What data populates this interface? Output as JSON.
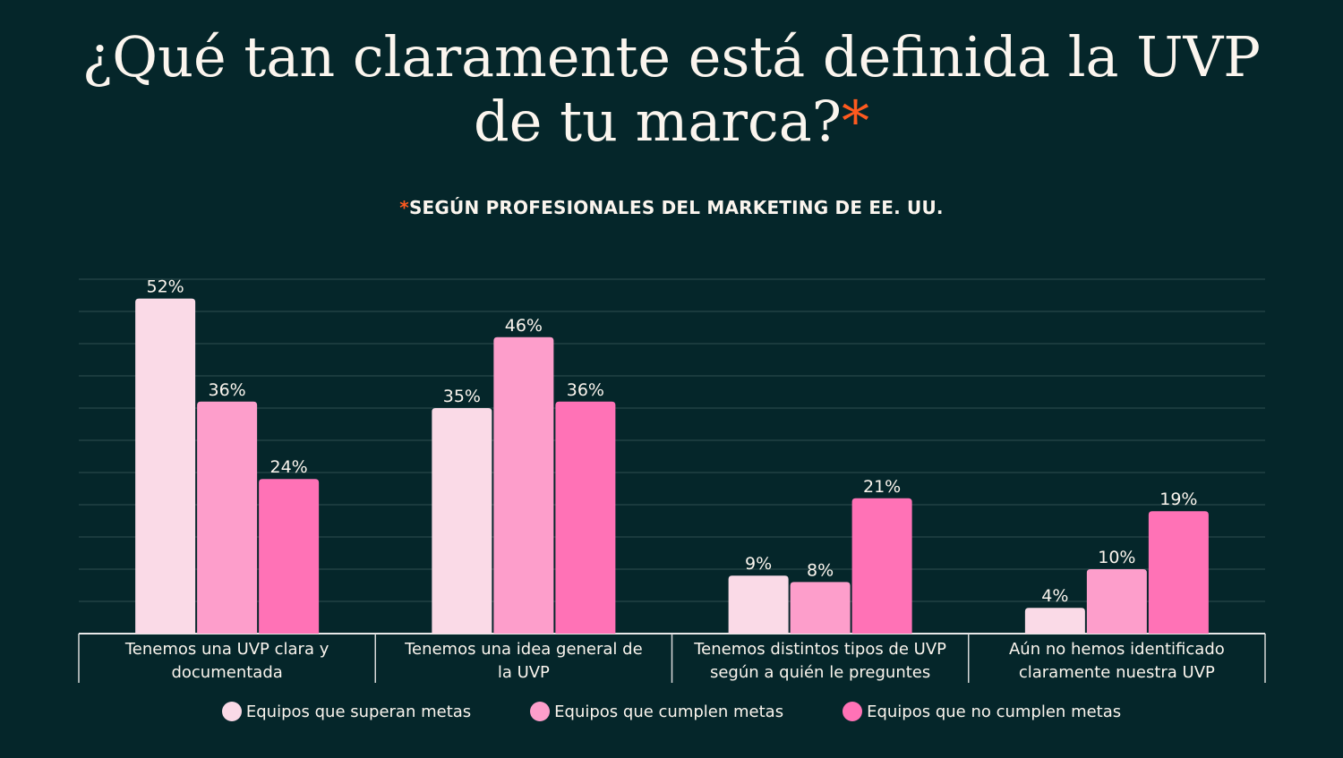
{
  "title_line1": "¿Qué tan claramente está definida la UVP",
  "title_line2": "de tu marca?",
  "title_asterisk": "*",
  "subtitle_asterisk": "*",
  "subtitle": "SEGÚN PROFESIONALES DEL MARKETING DE EE. UU.",
  "chart_data": {
    "type": "bar",
    "categories": [
      "Tenemos una UVP clara y documentada",
      "Tenemos una idea general de la UVP",
      "Tenemos distintos tipos de UVP según a quién le preguntes",
      "Aún no hemos identificado claramente nuestra UVP"
    ],
    "series": [
      {
        "name": "Equipos que superan metas",
        "values": [
          52,
          35,
          9,
          4
        ],
        "color": "#fadae7"
      },
      {
        "name": "Equipos que cumplen metas",
        "values": [
          36,
          46,
          8,
          10
        ],
        "color": "#fd9ecb"
      },
      {
        "name": "Equipos que no cumplen metas",
        "values": [
          24,
          36,
          21,
          19
        ],
        "color": "#ff72b6"
      }
    ],
    "value_suffix": "%",
    "ylim": [
      0,
      60
    ],
    "grid": true,
    "legend": "bottom",
    "background": "#05262a"
  }
}
